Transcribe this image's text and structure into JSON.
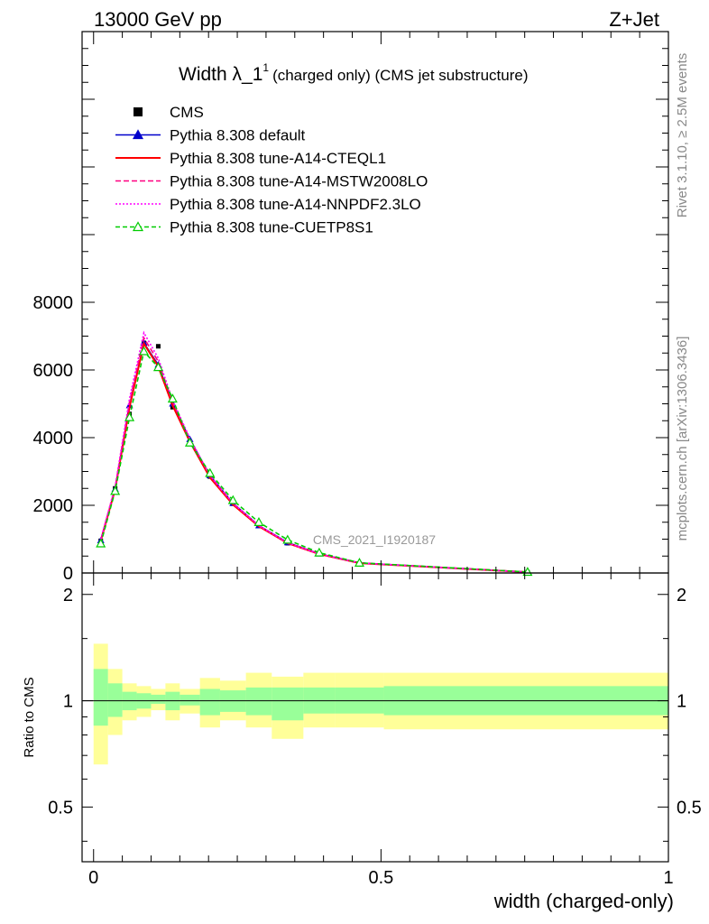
{
  "header": {
    "left": "13000 GeV pp",
    "right": "Z+Jet"
  },
  "plot_title": {
    "main": "Width λ_1",
    "sup": "1",
    "sub": "(charged only) (CMS jet substructure)"
  },
  "side_text": {
    "rivet": "Rivet 3.1.10, ≥ 2.5M events",
    "mcplots": "mcplots.cern.ch [arXiv:1306.3436]"
  },
  "analysis_label": "CMS_2021_I1920187",
  "chart_data": [
    {
      "type": "line",
      "panel": "main",
      "xlabel": "width (charged-only)",
      "ylabel": "",
      "xlim": [
        -0.02,
        1.0
      ],
      "ylim": [
        0,
        16000
      ],
      "yticks": [
        0,
        2000,
        4000,
        6000,
        8000
      ],
      "ytick_labels": [
        "0",
        "2000",
        "4000",
        "6000",
        "8000"
      ],
      "x": [
        0.0125,
        0.0375,
        0.0625,
        0.0875,
        0.1125,
        0.1375,
        0.1675,
        0.2025,
        0.2425,
        0.2875,
        0.3375,
        0.3925,
        0.4625,
        0.755
      ],
      "legend": {
        "placement": "top-left",
        "entries": [
          "CMS",
          "Pythia 8.308 default",
          "Pythia 8.308 tune-A14-CTEQL1",
          "Pythia 8.308 tune-A14-MSTW2008LO",
          "Pythia 8.308 tune-A14-NNPDF2.3LO",
          "Pythia 8.308 tune-CUETP8S1"
        ]
      },
      "series": [
        {
          "name": "CMS",
          "color": "#000000",
          "style": "marker-square",
          "values": [
            950,
            2500,
            4700,
            6800,
            6700,
            4900,
            3850,
            2850,
            2050,
            1400,
            880,
            560,
            280,
            20
          ]
        },
        {
          "name": "Pythia 8.308 default",
          "color": "#0000cc",
          "style": "solid-triangle",
          "values": [
            960,
            2480,
            4950,
            6800,
            6150,
            5000,
            3950,
            2880,
            2060,
            1400,
            900,
            570,
            300,
            25
          ]
        },
        {
          "name": "Pythia 8.308 tune-A14-CTEQL1",
          "color": "#ff0000",
          "style": "solid",
          "values": [
            950,
            2470,
            4900,
            6780,
            6100,
            4950,
            3880,
            2820,
            2020,
            1380,
            880,
            560,
            290,
            25
          ]
        },
        {
          "name": "Pythia 8.308 tune-A14-MSTW2008LO",
          "color": "#ff0080",
          "style": "dashed",
          "values": [
            980,
            2520,
            5050,
            6950,
            6250,
            5050,
            3950,
            2870,
            2050,
            1400,
            890,
            565,
            295,
            25
          ]
        },
        {
          "name": "Pythia 8.308 tune-A14-NNPDF2.3LO",
          "color": "#ff00ff",
          "style": "dotted",
          "values": [
            1000,
            2550,
            5150,
            7100,
            6350,
            5100,
            3980,
            2880,
            2060,
            1400,
            890,
            565,
            295,
            25
          ]
        },
        {
          "name": "Pythia 8.308 tune-CUETP8S1",
          "color": "#00cc00",
          "style": "dashed-open-triangle",
          "values": [
            870,
            2420,
            4600,
            6550,
            6080,
            5150,
            3850,
            2950,
            2150,
            1500,
            980,
            600,
            300,
            30
          ]
        }
      ]
    },
    {
      "type": "area",
      "panel": "ratio",
      "xlabel": "width (charged-only)",
      "ylabel": "Ratio to CMS",
      "xlim": [
        -0.02,
        1.0
      ],
      "ylim": [
        0.35,
        2.3
      ],
      "xticks": [
        0,
        0.5,
        1
      ],
      "xtick_labels": [
        "0",
        "0.5",
        "1"
      ],
      "yticks": [
        0.5,
        1,
        2
      ],
      "ytick_labels": [
        "0.5",
        "1",
        "2"
      ],
      "bin_edges": [
        0.0,
        0.025,
        0.05,
        0.075,
        0.1,
        0.125,
        0.15,
        0.185,
        0.22,
        0.265,
        0.31,
        0.365,
        0.42,
        0.505,
        1.0
      ],
      "band_outer": {
        "color": "#ffff99",
        "low": [
          0.66,
          0.8,
          0.88,
          0.9,
          0.94,
          0.88,
          0.92,
          0.84,
          0.88,
          0.84,
          0.78,
          0.84,
          0.84,
          0.83
        ],
        "high": [
          1.45,
          1.23,
          1.12,
          1.1,
          1.08,
          1.12,
          1.08,
          1.16,
          1.14,
          1.2,
          1.17,
          1.2,
          1.2,
          1.2
        ]
      },
      "band_inner": {
        "color": "#99ff99",
        "low": [
          0.85,
          0.9,
          0.94,
          0.95,
          0.98,
          0.94,
          0.97,
          0.91,
          0.93,
          0.91,
          0.88,
          0.92,
          0.92,
          0.91
        ],
        "high": [
          1.23,
          1.12,
          1.06,
          1.05,
          1.04,
          1.06,
          1.04,
          1.08,
          1.07,
          1.09,
          1.09,
          1.09,
          1.09,
          1.1
        ]
      },
      "reference_line": 1
    }
  ]
}
